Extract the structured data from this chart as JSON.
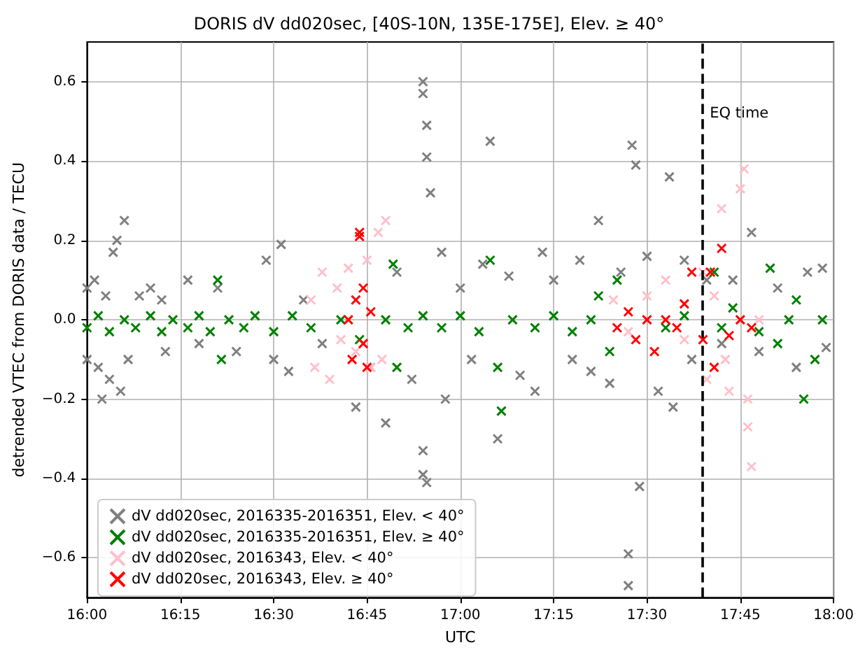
{
  "chart_data": {
    "type": "scatter",
    "title": "DORIS dV dd020sec, [40S-10N, 135E-175E], Elev. ≥ 40°",
    "xlabel": "UTC",
    "ylabel": "detrended VTEC from DORIS data / TECU",
    "xlim": [
      16,
      18
    ],
    "xticks": [
      {
        "value": 16,
        "label": "16:00"
      },
      {
        "value": 16.25,
        "label": "16:15"
      },
      {
        "value": 16.5,
        "label": "16:30"
      },
      {
        "value": 16.75,
        "label": "16:45"
      },
      {
        "value": 17,
        "label": "17:00"
      },
      {
        "value": 17.25,
        "label": "17:15"
      },
      {
        "value": 17.5,
        "label": "17:30"
      },
      {
        "value": 17.75,
        "label": "17:45"
      },
      {
        "value": 18,
        "label": "18:00"
      }
    ],
    "ylim": [
      -0.7,
      0.7
    ],
    "yticks": [
      {
        "value": -0.6,
        "label": "−0.6"
      },
      {
        "value": -0.4,
        "label": "−0.4"
      },
      {
        "value": -0.2,
        "label": "−0.2"
      },
      {
        "value": 0,
        "label": "0.0"
      },
      {
        "value": 0.2,
        "label": "0.2"
      },
      {
        "value": 0.4,
        "label": "0.4"
      },
      {
        "value": 0.6,
        "label": "0.6"
      }
    ],
    "grid": true,
    "legend": "bottom left",
    "marker": "cross",
    "ref_lines": [
      {
        "axis": "x",
        "value": 17.646,
        "label": "EQ time",
        "color": "#000000",
        "line_style": "dashed"
      }
    ],
    "series": [
      {
        "name": "dV dd020sec, 2016335-2016351, Elev. < 40°",
        "color": "#808080",
        "x": [
          16.0,
          16.0,
          16.02,
          16.03,
          16.04,
          16.05,
          16.06,
          16.07,
          16.08,
          16.09,
          16.1,
          16.11,
          16.14,
          16.17,
          16.2,
          16.21,
          16.27,
          16.3,
          16.35,
          16.4,
          16.48,
          16.5,
          16.52,
          16.54,
          16.58,
          16.63,
          16.72,
          16.76,
          16.8,
          16.83,
          16.87,
          16.9,
          16.9,
          16.91,
          16.91,
          16.92,
          16.9,
          16.9,
          16.91,
          16.95,
          16.96,
          17.0,
          17.03,
          17.06,
          17.08,
          17.1,
          17.13,
          17.16,
          17.2,
          17.22,
          17.25,
          17.3,
          17.32,
          17.35,
          17.37,
          17.4,
          17.43,
          17.45,
          17.45,
          17.46,
          17.47,
          17.48,
          17.5,
          17.53,
          17.56,
          17.57,
          17.6,
          17.62,
          17.66,
          17.7,
          17.73,
          17.78,
          17.8,
          17.85,
          17.9,
          17.93,
          17.97,
          17.98
        ],
        "values": [
          0.08,
          -0.1,
          0.1,
          -0.12,
          -0.2,
          0.06,
          -0.15,
          0.17,
          0.2,
          -0.18,
          0.25,
          -0.1,
          0.06,
          0.08,
          0.05,
          -0.08,
          0.1,
          -0.06,
          0.08,
          -0.08,
          0.15,
          -0.1,
          0.19,
          -0.13,
          0.05,
          -0.06,
          -0.22,
          -0.12,
          -0.26,
          0.12,
          -0.15,
          0.6,
          0.57,
          0.49,
          0.41,
          0.32,
          -0.33,
          -0.39,
          -0.41,
          0.17,
          -0.2,
          0.08,
          -0.1,
          0.14,
          0.45,
          -0.3,
          0.11,
          -0.14,
          -0.18,
          0.17,
          0.1,
          -0.1,
          0.15,
          -0.13,
          0.25,
          -0.16,
          0.12,
          -0.67,
          -0.59,
          0.44,
          0.39,
          -0.42,
          0.16,
          -0.18,
          0.36,
          -0.22,
          0.15,
          -0.1,
          0.1,
          -0.06,
          0.1,
          0.22,
          -0.08,
          0.08,
          -0.12,
          0.12,
          0.13,
          -0.07
        ]
      },
      {
        "name": "dV dd020sec, 2016335-2016351, Elev. ≥ 40°",
        "color": "#008000",
        "x": [
          16.0,
          16.03,
          16.06,
          16.1,
          16.13,
          16.17,
          16.2,
          16.23,
          16.27,
          16.3,
          16.33,
          16.35,
          16.36,
          16.38,
          16.42,
          16.45,
          16.5,
          16.55,
          16.6,
          16.68,
          16.73,
          16.8,
          16.82,
          16.83,
          16.86,
          16.9,
          16.95,
          17.0,
          17.05,
          17.08,
          17.1,
          17.11,
          17.14,
          17.2,
          17.25,
          17.3,
          17.35,
          17.37,
          17.4,
          17.42,
          17.55,
          17.6,
          17.68,
          17.7,
          17.73,
          17.8,
          17.83,
          17.85,
          17.88,
          17.9,
          17.92,
          17.95,
          17.97
        ],
        "values": [
          -0.02,
          0.01,
          -0.03,
          0.0,
          -0.02,
          0.01,
          -0.03,
          0.0,
          -0.02,
          0.01,
          -0.03,
          0.1,
          -0.1,
          0.0,
          -0.02,
          0.01,
          -0.03,
          0.01,
          -0.02,
          0.0,
          -0.05,
          0.0,
          0.14,
          -0.12,
          -0.02,
          0.01,
          -0.02,
          0.01,
          -0.03,
          0.15,
          -0.12,
          -0.23,
          0.0,
          -0.02,
          0.01,
          -0.03,
          0.0,
          0.06,
          -0.08,
          0.1,
          -0.02,
          0.01,
          0.12,
          -0.02,
          0.03,
          -0.03,
          0.13,
          -0.06,
          0.0,
          0.05,
          -0.2,
          -0.1,
          0.0
        ]
      },
      {
        "name": "dV dd020sec, 2016343, Elev. < 40°",
        "color": "#ffc0cb",
        "x": [
          16.6,
          16.61,
          16.63,
          16.65,
          16.67,
          16.68,
          16.7,
          16.72,
          16.75,
          16.76,
          16.78,
          16.79,
          16.8,
          17.41,
          17.45,
          17.5,
          17.55,
          17.6,
          17.65,
          17.66,
          17.68,
          17.7,
          17.71,
          17.72,
          17.75,
          17.76,
          17.77,
          17.78,
          17.77,
          17.8
        ],
        "values": [
          0.05,
          -0.12,
          0.12,
          -0.15,
          0.08,
          -0.05,
          0.13,
          -0.08,
          0.15,
          -0.12,
          0.22,
          -0.1,
          0.25,
          0.05,
          -0.03,
          0.06,
          0.1,
          -0.05,
          0.12,
          -0.15,
          0.06,
          0.28,
          -0.1,
          -0.18,
          0.33,
          0.38,
          -0.2,
          -0.37,
          -0.27,
          0.0
        ]
      },
      {
        "name": "dV dd020sec, 2016343, Elev. ≥ 40°",
        "color": "#ff0000",
        "x": [
          16.7,
          16.71,
          16.72,
          16.73,
          16.73,
          16.74,
          16.74,
          16.75,
          16.76,
          17.42,
          17.45,
          17.47,
          17.5,
          17.52,
          17.55,
          17.58,
          17.6,
          17.62,
          17.65,
          17.67,
          17.68,
          17.7,
          17.72,
          17.75,
          17.78
        ],
        "values": [
          0.0,
          -0.1,
          0.05,
          0.22,
          0.21,
          0.08,
          -0.06,
          -0.12,
          0.02,
          -0.02,
          0.02,
          -0.05,
          0.0,
          -0.08,
          0.0,
          -0.02,
          0.04,
          0.12,
          -0.05,
          0.12,
          -0.12,
          0.18,
          -0.04,
          0.0,
          -0.02
        ]
      }
    ]
  }
}
